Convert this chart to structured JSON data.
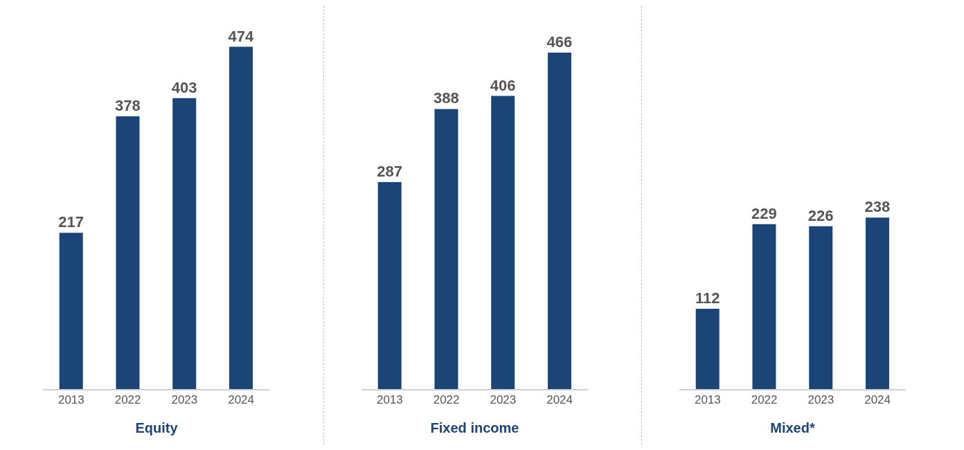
{
  "chart_data": [
    {
      "type": "bar",
      "xlabel": "Equity",
      "categories": [
        "2013",
        "2022",
        "2023",
        "2024"
      ],
      "values": [
        217,
        378,
        403,
        474
      ],
      "color": "#1b4577",
      "data_labels": true
    },
    {
      "type": "bar",
      "xlabel": "Fixed income",
      "categories": [
        "2013",
        "2022",
        "2023",
        "2024"
      ],
      "values": [
        287,
        388,
        406,
        466
      ],
      "color": "#1b4577",
      "data_labels": true
    },
    {
      "type": "bar",
      "xlabel": "Mixed*",
      "categories": [
        "2013",
        "2022",
        "2023",
        "2024"
      ],
      "values": [
        112,
        229,
        226,
        238
      ],
      "color": "#1b4577",
      "data_labels": true
    }
  ]
}
